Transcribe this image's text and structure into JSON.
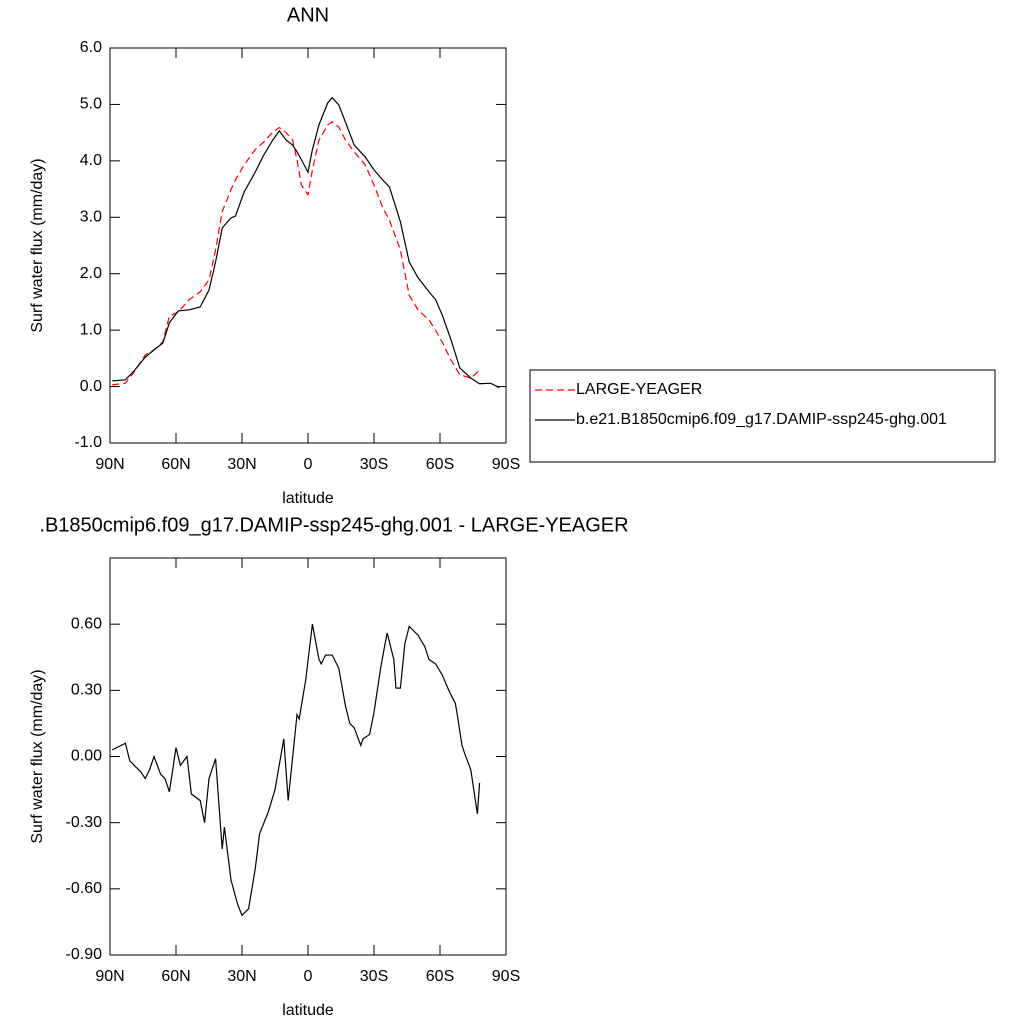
{
  "chart_data": [
    {
      "type": "line",
      "title": "ANN",
      "x_label": "latitude",
      "y_label": "Surf water flux (mm/day)",
      "x": [
        89,
        83,
        79,
        74,
        70,
        66,
        63,
        59,
        54,
        49,
        45,
        42,
        39,
        35,
        33,
        29,
        24,
        20,
        16,
        13,
        10,
        7,
        5,
        3,
        0,
        -2,
        -5,
        -9,
        -11,
        -14,
        -17,
        -21,
        -26,
        -30,
        -34,
        -37,
        -42,
        -46,
        -50,
        -55,
        -58,
        -61,
        -65,
        -69,
        -74,
        -78,
        -83,
        -87
      ],
      "series": [
        {
          "name": "LARGE-YEAGER",
          "color": "#ff0000",
          "dashed": true,
          "values": [
            0.03,
            0.06,
            0.26,
            0.56,
            0.65,
            0.79,
            1.25,
            1.32,
            1.54,
            1.68,
            1.89,
            2.42,
            3.1,
            3.49,
            3.66,
            3.93,
            4.2,
            4.34,
            4.51,
            4.59,
            4.5,
            4.37,
            4.02,
            3.57,
            3.4,
            3.84,
            4.37,
            4.64,
            4.69,
            4.6,
            4.37,
            4.16,
            3.93,
            3.57,
            3.17,
            2.95,
            2.42,
            1.62,
            1.36,
            1.18,
            1.0,
            0.79,
            0.47,
            0.21,
            0.15,
            0.29,
            null,
            null
          ]
        },
        {
          "name": "b.e21.B1850cmip6.f09_g17.DAMIP-ssp245-ghg.001",
          "color": "#000000",
          "dashed": false,
          "values": [
            0.1,
            0.12,
            0.28,
            0.52,
            0.65,
            0.77,
            1.13,
            1.34,
            1.36,
            1.41,
            1.71,
            2.21,
            2.81,
            2.99,
            3.02,
            3.45,
            3.8,
            4.11,
            4.37,
            4.53,
            4.37,
            4.28,
            4.16,
            4.02,
            3.8,
            4.2,
            4.64,
            5.03,
            5.12,
            4.99,
            4.69,
            4.28,
            4.07,
            3.84,
            3.66,
            3.54,
            2.92,
            2.21,
            1.93,
            1.68,
            1.54,
            1.27,
            0.83,
            0.33,
            0.15,
            0.05,
            0.06,
            -0.02
          ]
        }
      ],
      "xlim": [
        90,
        -90
      ],
      "xticks": [
        {
          "value": 90,
          "label": "90N"
        },
        {
          "value": 60,
          "label": "60N"
        },
        {
          "value": 30,
          "label": "30N"
        },
        0,
        {
          "value": -30,
          "label": "30S"
        },
        {
          "value": -60,
          "label": "60S"
        },
        {
          "value": -90,
          "label": "90S"
        }
      ],
      "ylim": [
        -1,
        6
      ],
      "yticks": [
        {
          "value": -1,
          "label": "-1.0"
        },
        {
          "value": 0,
          "label": "0.0"
        },
        {
          "value": 1,
          "label": "1.0"
        },
        {
          "value": 2,
          "label": "2.0"
        },
        {
          "value": 3,
          "label": "3.0"
        },
        {
          "value": 4,
          "label": "4.0"
        },
        {
          "value": 5,
          "label": "5.0"
        },
        {
          "value": 6,
          "label": "6.0"
        }
      ],
      "legend": "right"
    },
    {
      "type": "line",
      "title": ".B1850cmip6.f09_g17.DAMIP-ssp245-ghg.001 - LARGE-YEAGER",
      "x_label": "latitude",
      "y_label": "Surf water flux (mm/day)",
      "x": [
        89,
        83,
        81,
        76,
        74,
        72,
        70,
        67,
        65,
        63,
        60,
        58,
        55,
        53,
        49,
        47,
        45,
        42,
        39,
        38,
        35,
        32,
        30,
        27,
        24,
        22,
        18,
        15,
        11,
        9,
        5,
        4,
        1,
        -2,
        -5,
        -6,
        -8,
        -11,
        -14,
        -17,
        -19,
        -21,
        -24,
        -25,
        -28,
        -30,
        -33,
        -35,
        -36,
        -39,
        -40,
        -42,
        -44,
        -46,
        -50,
        -53,
        -55,
        -58,
        -61,
        -64,
        -67,
        -68,
        -70,
        -71,
        -74,
        -77,
        -78
      ],
      "values": [
        0.03,
        0.06,
        -0.02,
        -0.07,
        -0.1,
        -0.06,
        0.0,
        -0.08,
        -0.1,
        -0.16,
        0.04,
        -0.04,
        0.0,
        -0.17,
        -0.2,
        -0.3,
        -0.1,
        -0.01,
        -0.42,
        -0.32,
        -0.56,
        -0.67,
        -0.72,
        -0.69,
        -0.51,
        -0.35,
        -0.25,
        -0.15,
        0.08,
        -0.2,
        0.19,
        0.17,
        0.35,
        0.6,
        0.44,
        0.42,
        0.46,
        0.46,
        0.4,
        0.23,
        0.15,
        0.13,
        0.05,
        0.08,
        0.1,
        0.2,
        0.4,
        0.51,
        0.56,
        0.44,
        0.31,
        0.31,
        0.51,
        0.59,
        0.55,
        0.5,
        0.44,
        0.42,
        0.37,
        0.3,
        0.24,
        0.18,
        0.05,
        0.02,
        -0.06,
        -0.26,
        -0.12
      ],
      "color": "#000000",
      "xlim": [
        90,
        -90
      ],
      "xticks": [
        {
          "value": 90,
          "label": "90N"
        },
        {
          "value": 60,
          "label": "60N"
        },
        {
          "value": 30,
          "label": "30N"
        },
        0,
        {
          "value": -30,
          "label": "30S"
        },
        {
          "value": -60,
          "label": "60S"
        },
        {
          "value": -90,
          "label": "90S"
        }
      ],
      "ylim": [
        -0.9,
        0.9
      ],
      "yticks": [
        {
          "value": -0.9,
          "label": "-0.90"
        },
        {
          "value": -0.6,
          "label": "-0.60"
        },
        {
          "value": -0.3,
          "label": "-0.30"
        },
        {
          "value": 0,
          "label": "0.00"
        },
        {
          "value": 0.3,
          "label": "0.30"
        },
        {
          "value": 0.6,
          "label": "0.60"
        }
      ]
    }
  ]
}
